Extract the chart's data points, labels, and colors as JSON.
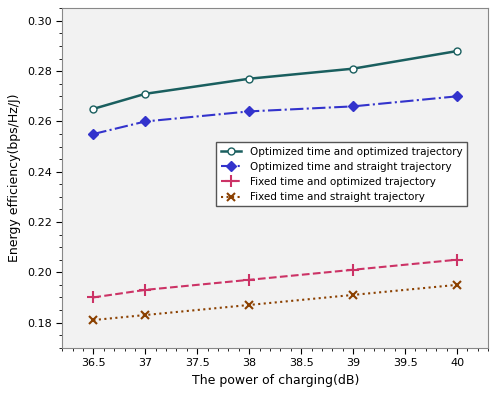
{
  "x": [
    36.5,
    37.0,
    38.0,
    39.0,
    40.0
  ],
  "series": [
    {
      "label": "Optimized time and optimized trajectory",
      "y": [
        0.265,
        0.271,
        0.277,
        0.281,
        0.288
      ],
      "color": "#1a5f5f",
      "linestyle": "-",
      "marker": "o",
      "markerfacecolor": "white",
      "markeredgecolor": "#1a5f5f",
      "linewidth": 1.8,
      "markersize": 5
    },
    {
      "label": "Optimized time and straight trajectory",
      "y": [
        0.255,
        0.26,
        0.264,
        0.266,
        0.27
      ],
      "color": "#3333cc",
      "linestyle": "-.",
      "marker": "D",
      "markerfacecolor": "#3333cc",
      "markeredgecolor": "#3333cc",
      "linewidth": 1.5,
      "markersize": 5
    },
    {
      "label": "Fixed time and optimized trajectory",
      "y": [
        0.19,
        0.193,
        0.197,
        0.201,
        0.205
      ],
      "color": "#cc3366",
      "linestyle": "--",
      "marker": "+",
      "markerfacecolor": "#cc3366",
      "markeredgecolor": "#cc3366",
      "linewidth": 1.5,
      "markersize": 8,
      "markeredgewidth": 1.5
    },
    {
      "label": "Fixed time and straight trajectory",
      "y": [
        0.181,
        0.183,
        0.187,
        0.191,
        0.195
      ],
      "color": "#8B4000",
      "linestyle": ":",
      "marker": "x",
      "markerfacecolor": "#8B4000",
      "markeredgecolor": "#8B4000",
      "linewidth": 1.5,
      "markersize": 6,
      "markeredgewidth": 1.5
    }
  ],
  "xlabel": "The power of charging(dB)",
  "ylabel": "Energy efficiency(bps/Hz/J)",
  "xlim": [
    36.2,
    40.3
  ],
  "ylim": [
    0.17,
    0.305
  ],
  "xticks": [
    36.5,
    37.0,
    37.5,
    38.0,
    38.5,
    39.0,
    39.5,
    40.0
  ],
  "yticks": [
    0.18,
    0.2,
    0.22,
    0.24,
    0.26,
    0.28,
    0.3
  ],
  "figsize": [
    5.0,
    3.95
  ],
  "dpi": 100,
  "axes_facecolor": "#f2f2f2",
  "legend_fontsize": 7.5
}
